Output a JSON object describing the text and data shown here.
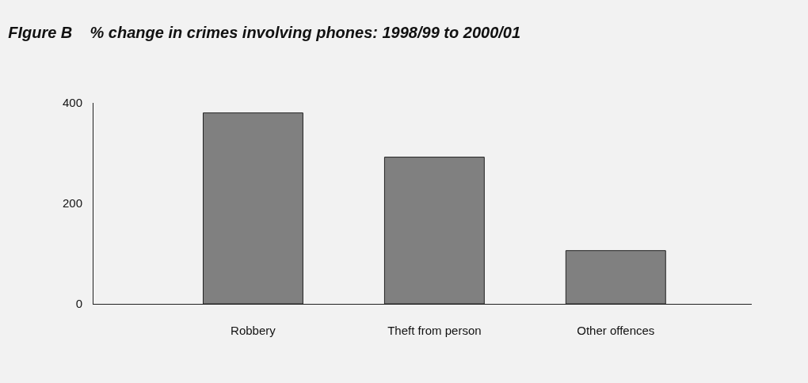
{
  "chart_data": {
    "type": "bar",
    "title": "FIgure B    % change in crimes involving phones: 1998/99 to 2000/01",
    "categories": [
      "Robbery",
      "Theft from person",
      "Other offences"
    ],
    "values": [
      380,
      292,
      106
    ],
    "color": "#808080",
    "ylim": [
      0,
      400
    ],
    "yticks": [
      0,
      200,
      400
    ],
    "grid": false
  }
}
